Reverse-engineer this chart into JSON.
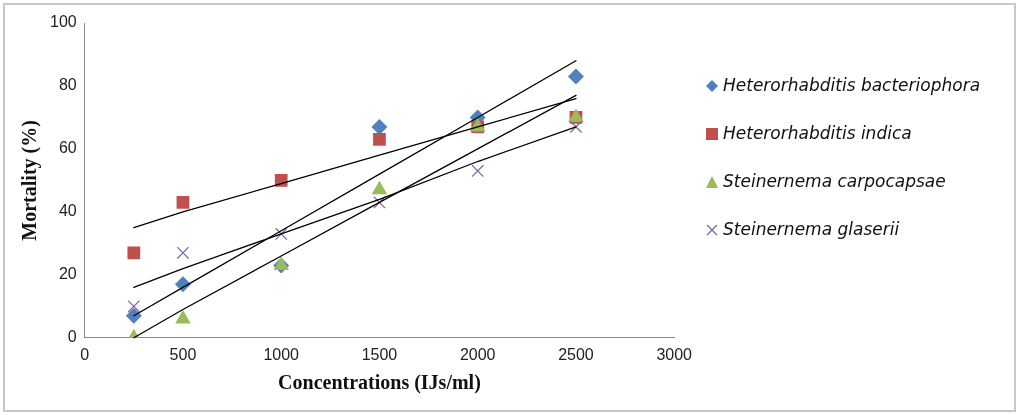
{
  "chart_data": {
    "type": "scatter",
    "xlabel": "Concentrations (IJs/ml)",
    "ylabel": "Mortality (%)",
    "x": [
      250,
      500,
      1000,
      1500,
      2000,
      2500
    ],
    "series": [
      {
        "name": "Heterorhabditis bacteriophora",
        "color": "#4f81bd",
        "marker": "diamond",
        "values": [
          7,
          17,
          23,
          67,
          70,
          83
        ]
      },
      {
        "name": "Heterorhabditis indica",
        "color": "#c0504d",
        "marker": "square",
        "values": [
          27,
          43,
          50,
          63,
          67,
          70
        ]
      },
      {
        "name": "Steinernema carpocapsae",
        "color": "#9bbb59",
        "marker": "triangle",
        "values": [
          0,
          6,
          23,
          47,
          67,
          70
        ]
      },
      {
        "name": "Steinernema glaserii",
        "color": "#8064a2",
        "marker": "cross",
        "values": [
          10,
          27,
          33,
          43,
          53,
          67
        ]
      },
      {
        "type": "line",
        "color": "#000000",
        "values": [
          7,
          16,
          34,
          52,
          70,
          88
        ]
      },
      {
        "type": "line",
        "color": "#000000",
        "values": [
          35,
          40,
          49,
          58,
          67,
          76
        ]
      },
      {
        "type": "line",
        "color": "#000000",
        "values": [
          0,
          9,
          26,
          43,
          60,
          77
        ]
      },
      {
        "type": "line",
        "color": "#000000",
        "values": [
          16,
          22,
          33,
          44,
          56,
          67
        ]
      }
    ],
    "xlim": [
      0,
      3000
    ],
    "xticks": [
      0,
      500,
      1000,
      1500,
      2000,
      2500,
      3000
    ],
    "ylim": [
      0,
      100
    ],
    "yticks": [
      0,
      20,
      40,
      60,
      80,
      100
    ],
    "grid": false,
    "legend": "right"
  }
}
